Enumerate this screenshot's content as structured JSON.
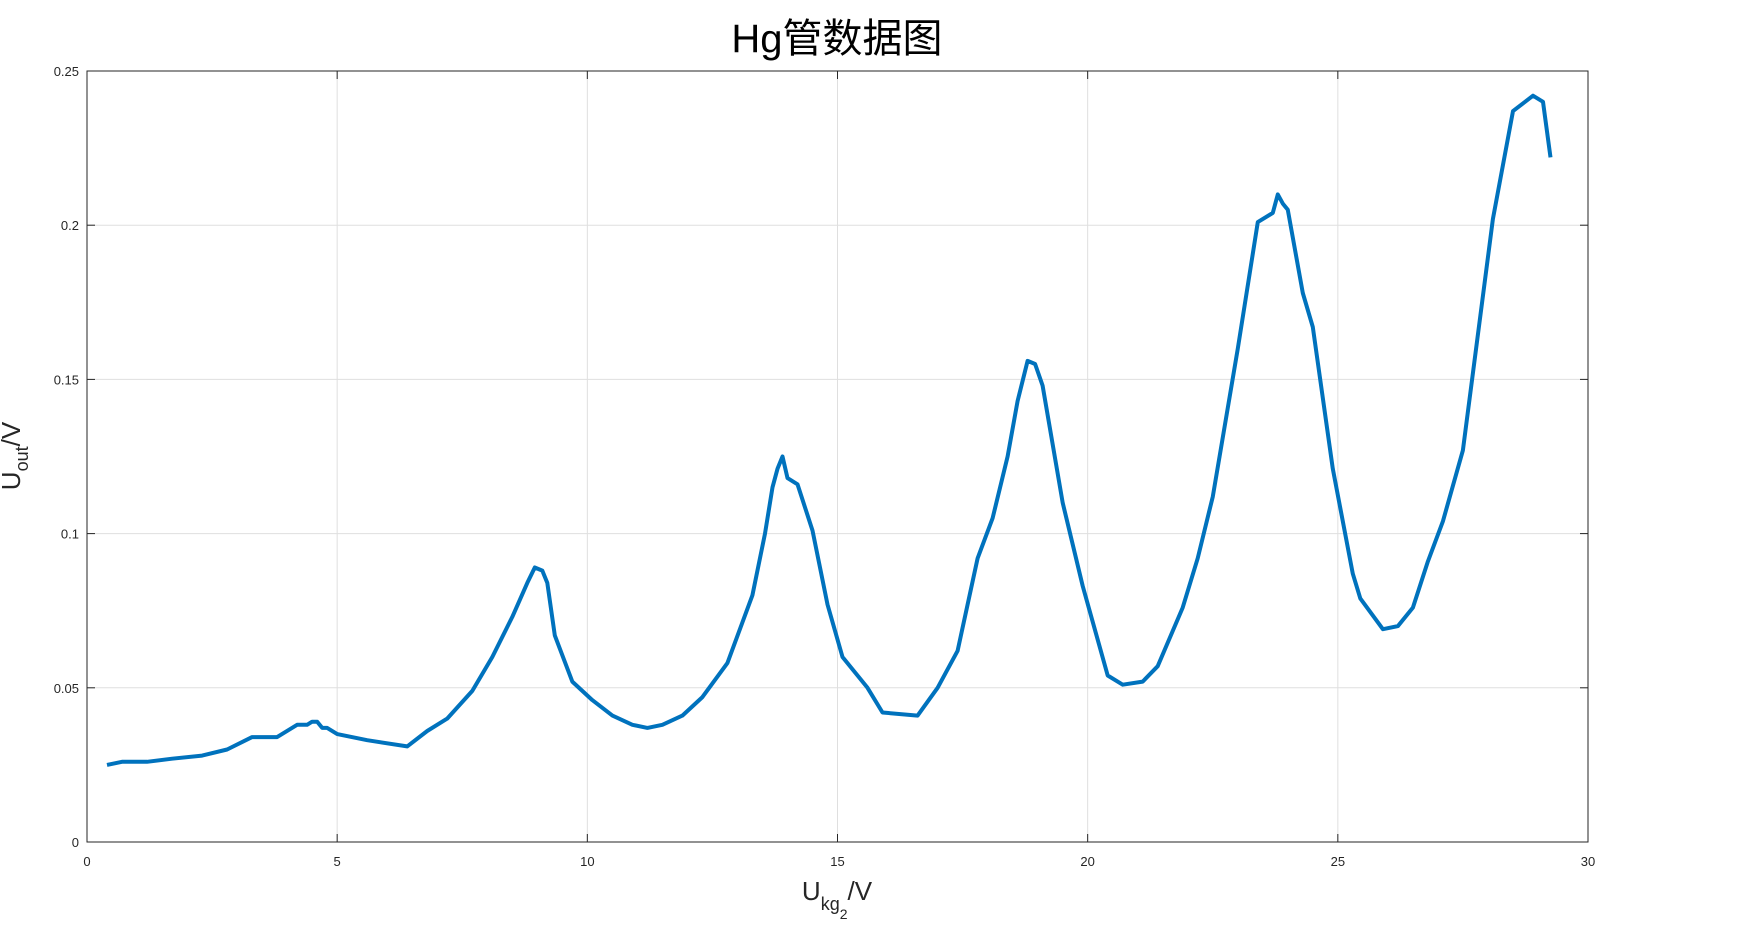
{
  "chart_data": {
    "type": "line",
    "title": "Hg管数据图",
    "xlabel": {
      "main": "U",
      "sub": "kg",
      "subsub": "2",
      "suffix": "/V"
    },
    "ylabel": {
      "main": "U",
      "sub": "out",
      "suffix": "/V"
    },
    "xlim": [
      0,
      30
    ],
    "ylim": [
      0,
      0.25
    ],
    "xticks": [
      0,
      5,
      10,
      15,
      20,
      25,
      30
    ],
    "xtick_labels": [
      "0",
      "5",
      "10",
      "15",
      "20",
      "25",
      "30"
    ],
    "yticks": [
      0,
      0.05,
      0.1,
      0.15,
      0.2,
      0.25
    ],
    "ytick_labels": [
      "0",
      "0.05",
      "0.1",
      "0.15",
      "0.2",
      "0.25"
    ],
    "grid": true,
    "series": [
      {
        "color": "#0072BD",
        "x": [
          0.4,
          0.7,
          1.2,
          1.7,
          2.3,
          2.8,
          3.3,
          3.8,
          4.2,
          4.4,
          4.5,
          4.6,
          4.7,
          4.8,
          5.0,
          5.6,
          6.4,
          6.8,
          7.2,
          7.7,
          8.1,
          8.5,
          8.8,
          8.95,
          9.1,
          9.2,
          9.35,
          9.7,
          10.1,
          10.5,
          10.9,
          11.2,
          11.5,
          11.9,
          12.3,
          12.8,
          13.3,
          13.55,
          13.7,
          13.8,
          13.9,
          14.0,
          14.2,
          14.5,
          14.8,
          15.1,
          15.6,
          15.9,
          16.6,
          17.0,
          17.4,
          17.8,
          18.1,
          18.4,
          18.6,
          18.8,
          18.95,
          19.1,
          19.5,
          19.9,
          20.4,
          20.7,
          21.1,
          21.4,
          21.9,
          22.2,
          22.5,
          23.0,
          23.4,
          23.7,
          23.8,
          23.9,
          24.0,
          24.3,
          24.5,
          24.9,
          25.3,
          25.45,
          25.9,
          26.2,
          26.5,
          26.8,
          27.1,
          27.5,
          28.1,
          28.5,
          28.9,
          29.1,
          29.25
        ],
        "y": [
          0.025,
          0.026,
          0.026,
          0.027,
          0.028,
          0.03,
          0.034,
          0.034,
          0.038,
          0.038,
          0.039,
          0.039,
          0.037,
          0.037,
          0.035,
          0.033,
          0.031,
          0.036,
          0.04,
          0.049,
          0.06,
          0.073,
          0.084,
          0.089,
          0.088,
          0.084,
          0.067,
          0.052,
          0.046,
          0.041,
          0.038,
          0.037,
          0.038,
          0.041,
          0.047,
          0.058,
          0.08,
          0.1,
          0.115,
          0.121,
          0.125,
          0.118,
          0.116,
          0.101,
          0.077,
          0.06,
          0.05,
          0.042,
          0.041,
          0.05,
          0.062,
          0.092,
          0.105,
          0.125,
          0.143,
          0.156,
          0.155,
          0.148,
          0.11,
          0.083,
          0.054,
          0.051,
          0.052,
          0.057,
          0.076,
          0.092,
          0.112,
          0.16,
          0.201,
          0.204,
          0.21,
          0.207,
          0.205,
          0.178,
          0.167,
          0.121,
          0.087,
          0.079,
          0.069,
          0.07,
          0.076,
          0.091,
          0.104,
          0.127,
          0.202,
          0.237,
          0.242,
          0.24,
          0.222
        ]
      }
    ]
  }
}
